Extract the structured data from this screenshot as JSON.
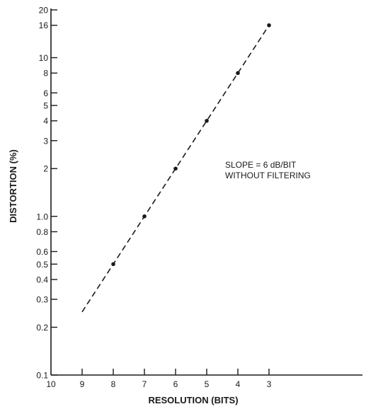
{
  "chart_data": {
    "type": "line",
    "title": "",
    "xlabel": "RESOLUTION (BITS)",
    "ylabel": "DISTORTION (%)",
    "x_reversed": true,
    "xlim": [
      10,
      3
    ],
    "ylim": [
      0.1,
      20
    ],
    "y_scale": "log",
    "grid": false,
    "x_ticks": [
      10,
      9,
      8,
      7,
      6,
      5,
      4,
      3
    ],
    "y_ticks": [
      0.1,
      0.2,
      0.3,
      0.4,
      0.5,
      0.6,
      0.8,
      1.0,
      2,
      3,
      4,
      5,
      6,
      8,
      10,
      16,
      20
    ],
    "y_tick_labels": [
      "0.1",
      "0.2",
      "0.3",
      "0.4",
      "0.5",
      "0.6",
      "0.8",
      "1.0",
      "2",
      "3",
      "4",
      "5",
      "6",
      "8",
      "10",
      "16",
      "20"
    ],
    "series": [
      {
        "style": "dashed",
        "x": [
          8,
          7,
          6,
          5,
          4,
          3
        ],
        "y": [
          0.5,
          1.0,
          2,
          4,
          8,
          16
        ],
        "line_x": [
          9,
          3
        ],
        "line_y": [
          0.25,
          16
        ]
      }
    ],
    "annotations": [
      "SLOPE = 6 dB/BIT",
      "WITHOUT FILTERING"
    ]
  }
}
